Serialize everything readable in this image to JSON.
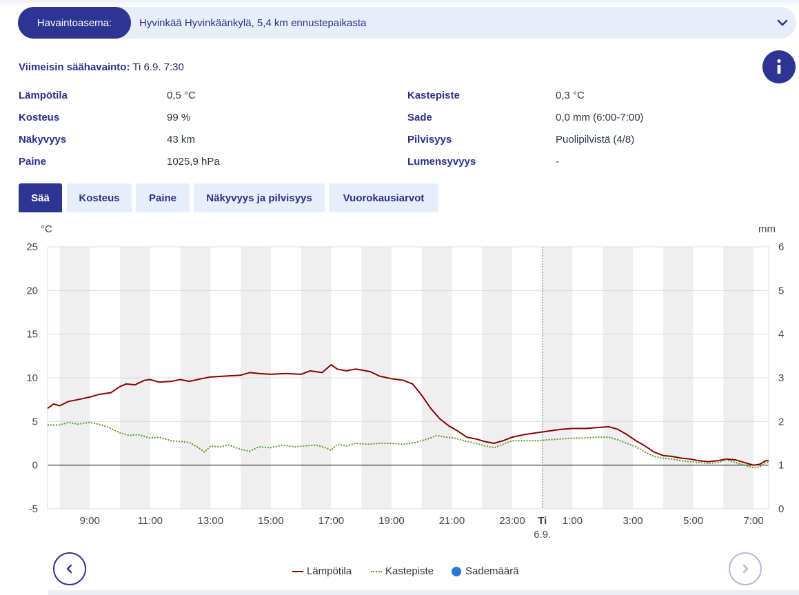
{
  "station": {
    "label": "Havaintoasema:",
    "value": "Hyvinkää Hyvinkäänkylä, 5,4 km ennustepaikasta",
    "chevron_icon": "chevron-down-icon"
  },
  "latest": {
    "label": "Viimeisin säähavainto:",
    "value": "Ti 6.9. 7:30"
  },
  "info_icon": "info-icon",
  "observations": {
    "left": [
      {
        "label": "Lämpötila",
        "value": "0,5 °C"
      },
      {
        "label": "Kosteus",
        "value": "99 %"
      },
      {
        "label": "Näkyvyys",
        "value": "43 km"
      },
      {
        "label": "Paine",
        "value": "1025,9 hPa"
      }
    ],
    "right": [
      {
        "label": "Kastepiste",
        "value": "0,3 °C"
      },
      {
        "label": "Sade",
        "value": "0,0 mm (6:00-7:00)"
      },
      {
        "label": "Pilvisyys",
        "value": "Puolipilvistä (4/8)"
      },
      {
        "label": "Lumensyvyys",
        "value": "-"
      }
    ]
  },
  "tabs": [
    {
      "label": "Sää",
      "active": true
    },
    {
      "label": "Kosteus",
      "active": false
    },
    {
      "label": "Paine",
      "active": false
    },
    {
      "label": "Näkyvyys ja pilvisyys",
      "active": false
    },
    {
      "label": "Vuorokausiarvot",
      "active": false
    }
  ],
  "chart_data": {
    "type": "line",
    "ylabel_left": "°C",
    "ylabel_right": "mm",
    "ylim_left": [
      -5,
      25
    ],
    "ylim_right": [
      0,
      6
    ],
    "yticks_left": [
      "-5",
      "0",
      "5",
      "10",
      "15",
      "20",
      "25"
    ],
    "yticks_right": [
      "0",
      "1",
      "2",
      "3",
      "4",
      "5",
      "6"
    ],
    "xlim": [
      7.6,
      31.5
    ],
    "xticks": [
      {
        "x": 9,
        "label": "9:00"
      },
      {
        "x": 11,
        "label": "11:00"
      },
      {
        "x": 13,
        "label": "13:00"
      },
      {
        "x": 15,
        "label": "15:00"
      },
      {
        "x": 17,
        "label": "17:00"
      },
      {
        "x": 19,
        "label": "19:00"
      },
      {
        "x": 21,
        "label": "21:00"
      },
      {
        "x": 23,
        "label": "23:00"
      },
      {
        "x": 24,
        "label": "Ti",
        "sublabel": "6.9."
      },
      {
        "x": 25,
        "label": "1:00"
      },
      {
        "x": 27,
        "label": "3:00"
      },
      {
        "x": 29,
        "label": "5:00"
      },
      {
        "x": 31,
        "label": "7:00"
      }
    ],
    "series": [
      {
        "name": "Lämpötila",
        "color": "#8b0000",
        "style": "solid",
        "points": [
          [
            7.6,
            6.5
          ],
          [
            7.8,
            7.0
          ],
          [
            8.0,
            6.8
          ],
          [
            8.3,
            7.3
          ],
          [
            8.6,
            7.5
          ],
          [
            9.0,
            7.8
          ],
          [
            9.3,
            8.1
          ],
          [
            9.7,
            8.3
          ],
          [
            10.0,
            9.0
          ],
          [
            10.2,
            9.3
          ],
          [
            10.5,
            9.2
          ],
          [
            10.8,
            9.7
          ],
          [
            11.0,
            9.8
          ],
          [
            11.3,
            9.5
          ],
          [
            11.7,
            9.6
          ],
          [
            12.0,
            9.8
          ],
          [
            12.3,
            9.6
          ],
          [
            12.7,
            9.9
          ],
          [
            13.0,
            10.1
          ],
          [
            13.5,
            10.2
          ],
          [
            14.0,
            10.3
          ],
          [
            14.3,
            10.6
          ],
          [
            14.6,
            10.5
          ],
          [
            15.0,
            10.4
          ],
          [
            15.5,
            10.5
          ],
          [
            16.0,
            10.4
          ],
          [
            16.3,
            10.8
          ],
          [
            16.7,
            10.6
          ],
          [
            17.0,
            11.5
          ],
          [
            17.2,
            11.0
          ],
          [
            17.5,
            10.8
          ],
          [
            17.8,
            11.0
          ],
          [
            18.0,
            10.9
          ],
          [
            18.3,
            10.7
          ],
          [
            18.6,
            10.2
          ],
          [
            19.0,
            9.9
          ],
          [
            19.4,
            9.7
          ],
          [
            19.7,
            9.3
          ],
          [
            20.0,
            8.0
          ],
          [
            20.3,
            6.5
          ],
          [
            20.6,
            5.3
          ],
          [
            20.9,
            4.5
          ],
          [
            21.2,
            3.9
          ],
          [
            21.5,
            3.2
          ],
          [
            21.8,
            3.0
          ],
          [
            22.1,
            2.7
          ],
          [
            22.4,
            2.5
          ],
          [
            22.7,
            2.8
          ],
          [
            23.0,
            3.2
          ],
          [
            23.4,
            3.5
          ],
          [
            23.8,
            3.7
          ],
          [
            24.2,
            3.9
          ],
          [
            24.6,
            4.1
          ],
          [
            25.0,
            4.2
          ],
          [
            25.4,
            4.2
          ],
          [
            25.8,
            4.3
          ],
          [
            26.2,
            4.4
          ],
          [
            26.5,
            4.1
          ],
          [
            26.8,
            3.5
          ],
          [
            27.1,
            2.8
          ],
          [
            27.4,
            2.2
          ],
          [
            27.7,
            1.5
          ],
          [
            28.0,
            1.1
          ],
          [
            28.3,
            1.0
          ],
          [
            28.6,
            0.8
          ],
          [
            28.9,
            0.7
          ],
          [
            29.2,
            0.5
          ],
          [
            29.5,
            0.4
          ],
          [
            29.8,
            0.5
          ],
          [
            30.1,
            0.7
          ],
          [
            30.4,
            0.6
          ],
          [
            30.7,
            0.3
          ],
          [
            31.0,
            0.0
          ],
          [
            31.2,
            0.1
          ],
          [
            31.4,
            0.5
          ],
          [
            31.5,
            0.5
          ]
        ]
      },
      {
        "name": "Kastepiste",
        "color": "#4f9a1f",
        "style": "dotted",
        "points": [
          [
            7.6,
            4.6
          ],
          [
            8.0,
            4.6
          ],
          [
            8.3,
            4.9
          ],
          [
            8.6,
            4.7
          ],
          [
            9.0,
            4.9
          ],
          [
            9.4,
            4.6
          ],
          [
            9.7,
            4.2
          ],
          [
            10.0,
            3.7
          ],
          [
            10.3,
            3.4
          ],
          [
            10.6,
            3.5
          ],
          [
            11.0,
            3.1
          ],
          [
            11.3,
            3.2
          ],
          [
            11.7,
            2.8
          ],
          [
            12.0,
            2.7
          ],
          [
            12.3,
            2.6
          ],
          [
            12.6,
            2.0
          ],
          [
            12.8,
            1.5
          ],
          [
            13.0,
            2.2
          ],
          [
            13.3,
            2.1
          ],
          [
            13.6,
            2.3
          ],
          [
            14.0,
            1.8
          ],
          [
            14.3,
            1.6
          ],
          [
            14.6,
            2.1
          ],
          [
            15.0,
            2.0
          ],
          [
            15.4,
            2.3
          ],
          [
            15.8,
            2.1
          ],
          [
            16.1,
            2.2
          ],
          [
            16.5,
            2.3
          ],
          [
            16.8,
            2.0
          ],
          [
            17.0,
            1.7
          ],
          [
            17.2,
            2.4
          ],
          [
            17.5,
            2.2
          ],
          [
            17.8,
            2.5
          ],
          [
            18.2,
            2.4
          ],
          [
            18.6,
            2.5
          ],
          [
            19.0,
            2.5
          ],
          [
            19.4,
            2.4
          ],
          [
            19.8,
            2.6
          ],
          [
            20.2,
            3.0
          ],
          [
            20.5,
            3.4
          ],
          [
            20.8,
            3.2
          ],
          [
            21.1,
            3.1
          ],
          [
            21.4,
            2.8
          ],
          [
            21.8,
            2.5
          ],
          [
            22.1,
            2.2
          ],
          [
            22.4,
            2.0
          ],
          [
            22.7,
            2.4
          ],
          [
            23.0,
            2.8
          ],
          [
            23.4,
            2.8
          ],
          [
            23.8,
            2.8
          ],
          [
            24.2,
            2.9
          ],
          [
            24.6,
            3.0
          ],
          [
            25.0,
            3.1
          ],
          [
            25.4,
            3.1
          ],
          [
            25.8,
            3.2
          ],
          [
            26.2,
            3.2
          ],
          [
            26.5,
            2.9
          ],
          [
            26.8,
            2.5
          ],
          [
            27.1,
            2.1
          ],
          [
            27.4,
            1.5
          ],
          [
            27.7,
            1.0
          ],
          [
            28.0,
            0.8
          ],
          [
            28.3,
            0.7
          ],
          [
            28.6,
            0.5
          ],
          [
            28.9,
            0.4
          ],
          [
            29.2,
            0.3
          ],
          [
            29.5,
            0.2
          ],
          [
            29.8,
            0.3
          ],
          [
            30.1,
            0.6
          ],
          [
            30.4,
            0.3
          ],
          [
            30.7,
            0.0
          ],
          [
            31.0,
            -0.3
          ],
          [
            31.2,
            -0.2
          ],
          [
            31.4,
            0.3
          ],
          [
            31.5,
            0.3
          ]
        ]
      },
      {
        "name": "Sademäärä",
        "color": "#2a78d6",
        "style": "bar",
        "points": []
      }
    ],
    "nav": {
      "prev_icon": "chevron-left-icon",
      "next_icon": "chevron-right-icon"
    }
  }
}
